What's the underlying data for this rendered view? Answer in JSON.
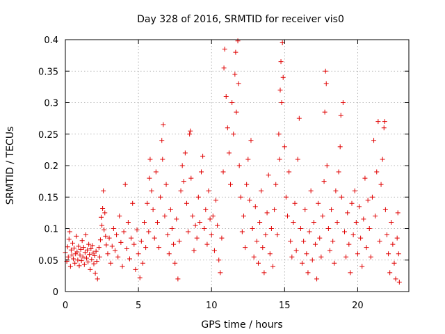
{
  "chart_data": {
    "type": "scatter",
    "title": "Day 328 of 2016, SRMTID for receiver vis0",
    "xlabel": "GPS time / hours",
    "ylabel": "SRMTID / TECUs",
    "xlim": [
      0,
      23.5
    ],
    "ylim": [
      0,
      0.4
    ],
    "xticks": [
      0,
      5,
      10,
      15,
      20
    ],
    "xtick_labels": [
      "0",
      "5",
      "10",
      "15",
      "20"
    ],
    "yticks": [
      0,
      0.05,
      0.1,
      0.15,
      0.2,
      0.25,
      0.3,
      0.35,
      0.4
    ],
    "ytick_labels": [
      "0",
      "0.05",
      "0.1",
      "0.15",
      "0.2",
      "0.25",
      "0.3",
      "0.35",
      "0.4"
    ],
    "grid": true,
    "marker": "+",
    "color": "#e00000",
    "series": [
      {
        "name": "vis0",
        "points": [
          [
            0.0,
            0.062
          ],
          [
            0.1,
            0.048
          ],
          [
            0.15,
            0.071
          ],
          [
            0.2,
            0.055
          ],
          [
            0.25,
            0.083
          ],
          [
            0.3,
            0.095
          ],
          [
            0.35,
            0.04
          ],
          [
            0.4,
            0.066
          ],
          [
            0.45,
            0.058
          ],
          [
            0.5,
            0.077
          ],
          [
            0.55,
            0.052
          ],
          [
            0.6,
            0.069
          ],
          [
            0.65,
            0.045
          ],
          [
            0.7,
            0.06
          ],
          [
            0.75,
            0.088
          ],
          [
            0.8,
            0.063
          ],
          [
            0.85,
            0.05
          ],
          [
            0.9,
            0.072
          ],
          [
            0.95,
            0.041
          ],
          [
            1.0,
            0.058
          ],
          [
            1.05,
            0.067
          ],
          [
            1.1,
            0.049
          ],
          [
            1.15,
            0.081
          ],
          [
            1.2,
            0.055
          ],
          [
            1.25,
            0.07
          ],
          [
            1.3,
            0.043
          ],
          [
            1.35,
            0.062
          ],
          [
            1.4,
            0.09
          ],
          [
            1.45,
            0.053
          ],
          [
            1.5,
            0.066
          ],
          [
            1.55,
            0.047
          ],
          [
            1.6,
            0.075
          ],
          [
            1.65,
            0.059
          ],
          [
            1.7,
            0.035
          ],
          [
            1.75,
            0.068
          ],
          [
            1.8,
            0.051
          ],
          [
            1.85,
            0.073
          ],
          [
            1.9,
            0.061
          ],
          [
            1.95,
            0.044
          ],
          [
            2.0,
            0.057
          ],
          [
            2.05,
            0.029
          ],
          [
            2.1,
            0.064
          ],
          [
            2.15,
            0.048
          ],
          [
            2.2,
            0.02
          ],
          [
            2.3,
            0.07
          ],
          [
            2.35,
            0.055
          ],
          [
            2.4,
            0.082
          ],
          [
            2.45,
            0.118
          ],
          [
            2.5,
            0.105
          ],
          [
            2.55,
            0.132
          ],
          [
            2.6,
            0.16
          ],
          [
            2.65,
            0.098
          ],
          [
            2.7,
            0.125
          ],
          [
            2.75,
            0.088
          ],
          [
            2.8,
            0.074
          ],
          [
            2.9,
            0.06
          ],
          [
            3.0,
            0.085
          ],
          [
            3.1,
            0.045
          ],
          [
            3.2,
            0.072
          ],
          [
            3.3,
            0.1
          ],
          [
            3.4,
            0.065
          ],
          [
            3.5,
            0.09
          ],
          [
            3.6,
            0.055
          ],
          [
            3.7,
            0.12
          ],
          [
            3.8,
            0.078
          ],
          [
            3.9,
            0.04
          ],
          [
            4.0,
            0.095
          ],
          [
            4.1,
            0.17
          ],
          [
            4.2,
            0.068
          ],
          [
            4.3,
            0.11
          ],
          [
            4.4,
            0.052
          ],
          [
            4.5,
            0.085
          ],
          [
            4.6,
            0.14
          ],
          [
            4.7,
            0.075
          ],
          [
            4.8,
            0.035
          ],
          [
            4.9,
            0.098
          ],
          [
            5.0,
            0.06
          ],
          [
            5.1,
            0.022
          ],
          [
            5.2,
            0.08
          ],
          [
            5.3,
            0.045
          ],
          [
            5.4,
            0.11
          ],
          [
            5.5,
            0.07
          ],
          [
            5.6,
            0.14
          ],
          [
            5.7,
            0.095
          ],
          [
            5.75,
            0.18
          ],
          [
            5.8,
            0.21
          ],
          [
            5.9,
            0.16
          ],
          [
            6.0,
            0.13
          ],
          [
            6.1,
            0.085
          ],
          [
            6.2,
            0.19
          ],
          [
            6.3,
            0.11
          ],
          [
            6.4,
            0.07
          ],
          [
            6.5,
            0.15
          ],
          [
            6.6,
            0.24
          ],
          [
            6.65,
            0.21
          ],
          [
            6.7,
            0.265
          ],
          [
            6.8,
            0.12
          ],
          [
            6.9,
            0.17
          ],
          [
            7.0,
            0.09
          ],
          [
            7.1,
            0.06
          ],
          [
            7.2,
            0.13
          ],
          [
            7.3,
            0.1
          ],
          [
            7.4,
            0.075
          ],
          [
            7.5,
            0.045
          ],
          [
            7.6,
            0.115
          ],
          [
            7.7,
            0.02
          ],
          [
            7.8,
            0.08
          ],
          [
            7.9,
            0.16
          ],
          [
            8.0,
            0.2
          ],
          [
            8.1,
            0.175
          ],
          [
            8.2,
            0.22
          ],
          [
            8.3,
            0.14
          ],
          [
            8.4,
            0.095
          ],
          [
            8.5,
            0.25
          ],
          [
            8.55,
            0.255
          ],
          [
            8.6,
            0.18
          ],
          [
            8.7,
            0.12
          ],
          [
            8.8,
            0.065
          ],
          [
            8.9,
            0.105
          ],
          [
            9.0,
            0.085
          ],
          [
            9.1,
            0.15
          ],
          [
            9.2,
            0.11
          ],
          [
            9.3,
            0.19
          ],
          [
            9.4,
            0.215
          ],
          [
            9.5,
            0.1
          ],
          [
            9.6,
            0.13
          ],
          [
            9.7,
            0.075
          ],
          [
            9.8,
            0.16
          ],
          [
            9.9,
            0.115
          ],
          [
            10.0,
            0.09
          ],
          [
            10.1,
            0.12
          ],
          [
            10.2,
            0.065
          ],
          [
            10.3,
            0.145
          ],
          [
            10.4,
            0.105
          ],
          [
            10.5,
            0.05
          ],
          [
            10.6,
            0.03
          ],
          [
            10.7,
            0.085
          ],
          [
            10.8,
            0.19
          ],
          [
            10.85,
            0.355
          ],
          [
            10.9,
            0.385
          ],
          [
            11.0,
            0.31
          ],
          [
            11.1,
            0.26
          ],
          [
            11.2,
            0.22
          ],
          [
            11.3,
            0.17
          ],
          [
            11.4,
            0.3
          ],
          [
            11.5,
            0.25
          ],
          [
            11.6,
            0.345
          ],
          [
            11.65,
            0.38
          ],
          [
            11.7,
            0.285
          ],
          [
            11.8,
            0.398
          ],
          [
            11.85,
            0.33
          ],
          [
            11.9,
            0.2
          ],
          [
            12.0,
            0.15
          ],
          [
            12.1,
            0.095
          ],
          [
            12.2,
            0.12
          ],
          [
            12.3,
            0.07
          ],
          [
            12.4,
            0.17
          ],
          [
            12.5,
            0.21
          ],
          [
            12.6,
            0.145
          ],
          [
            12.7,
            0.24
          ],
          [
            12.8,
            0.1
          ],
          [
            12.9,
            0.055
          ],
          [
            13.0,
            0.135
          ],
          [
            13.1,
            0.08
          ],
          [
            13.2,
            0.045
          ],
          [
            13.3,
            0.11
          ],
          [
            13.4,
            0.16
          ],
          [
            13.5,
            0.07
          ],
          [
            13.6,
            0.03
          ],
          [
            13.7,
            0.09
          ],
          [
            13.8,
            0.125
          ],
          [
            13.9,
            0.185
          ],
          [
            14.0,
            0.06
          ],
          [
            14.1,
            0.1
          ],
          [
            14.2,
            0.04
          ],
          [
            14.3,
            0.13
          ],
          [
            14.4,
            0.17
          ],
          [
            14.5,
            0.09
          ],
          [
            14.6,
            0.25
          ],
          [
            14.65,
            0.21
          ],
          [
            14.7,
            0.32
          ],
          [
            14.75,
            0.365
          ],
          [
            14.8,
            0.3
          ],
          [
            14.85,
            0.395
          ],
          [
            14.9,
            0.34
          ],
          [
            15.0,
            0.23
          ],
          [
            15.1,
            0.15
          ],
          [
            15.2,
            0.12
          ],
          [
            15.3,
            0.19
          ],
          [
            15.4,
            0.08
          ],
          [
            15.5,
            0.055
          ],
          [
            15.6,
            0.11
          ],
          [
            15.7,
            0.14
          ],
          [
            15.8,
            0.065
          ],
          [
            15.9,
            0.21
          ],
          [
            16.0,
            0.275
          ],
          [
            16.1,
            0.1
          ],
          [
            16.2,
            0.045
          ],
          [
            16.3,
            0.08
          ],
          [
            16.4,
            0.13
          ],
          [
            16.5,
            0.06
          ],
          [
            16.6,
            0.03
          ],
          [
            16.7,
            0.095
          ],
          [
            16.8,
            0.16
          ],
          [
            16.9,
            0.05
          ],
          [
            17.0,
            0.11
          ],
          [
            17.1,
            0.075
          ],
          [
            17.2,
            0.02
          ],
          [
            17.3,
            0.14
          ],
          [
            17.4,
            0.085
          ],
          [
            17.5,
            0.055
          ],
          [
            17.6,
            0.12
          ],
          [
            17.7,
            0.175
          ],
          [
            17.75,
            0.285
          ],
          [
            17.8,
            0.35
          ],
          [
            17.85,
            0.33
          ],
          [
            17.9,
            0.2
          ],
          [
            18.0,
            0.1
          ],
          [
            18.1,
            0.065
          ],
          [
            18.2,
            0.13
          ],
          [
            18.3,
            0.08
          ],
          [
            18.4,
            0.045
          ],
          [
            18.5,
            0.16
          ],
          [
            18.6,
            0.11
          ],
          [
            18.7,
            0.19
          ],
          [
            18.8,
            0.23
          ],
          [
            18.85,
            0.28
          ],
          [
            18.9,
            0.15
          ],
          [
            19.0,
            0.3
          ],
          [
            19.1,
            0.095
          ],
          [
            19.2,
            0.055
          ],
          [
            19.3,
            0.125
          ],
          [
            19.4,
            0.075
          ],
          [
            19.5,
            0.03
          ],
          [
            19.6,
            0.14
          ],
          [
            19.7,
            0.09
          ],
          [
            19.8,
            0.16
          ],
          [
            19.9,
            0.11
          ],
          [
            20.0,
            0.06
          ],
          [
            20.1,
            0.135
          ],
          [
            20.2,
            0.085
          ],
          [
            20.3,
            0.04
          ],
          [
            20.4,
            0.115
          ],
          [
            20.5,
            0.18
          ],
          [
            20.6,
            0.07
          ],
          [
            20.7,
            0.145
          ],
          [
            20.8,
            0.1
          ],
          [
            20.9,
            0.055
          ],
          [
            21.0,
            0.15
          ],
          [
            21.1,
            0.24
          ],
          [
            21.2,
            0.12
          ],
          [
            21.3,
            0.19
          ],
          [
            21.4,
            0.27
          ],
          [
            21.5,
            0.08
          ],
          [
            21.6,
            0.17
          ],
          [
            21.7,
            0.21
          ],
          [
            21.8,
            0.26
          ],
          [
            21.85,
            0.27
          ],
          [
            21.9,
            0.13
          ],
          [
            22.0,
            0.09
          ],
          [
            22.1,
            0.06
          ],
          [
            22.2,
            0.03
          ],
          [
            22.3,
            0.11
          ],
          [
            22.4,
            0.075
          ],
          [
            22.5,
            0.045
          ],
          [
            22.6,
            0.02
          ],
          [
            22.7,
            0.085
          ],
          [
            22.75,
            0.125
          ],
          [
            22.8,
            0.06
          ],
          [
            22.85,
            0.015
          ]
        ]
      }
    ]
  }
}
